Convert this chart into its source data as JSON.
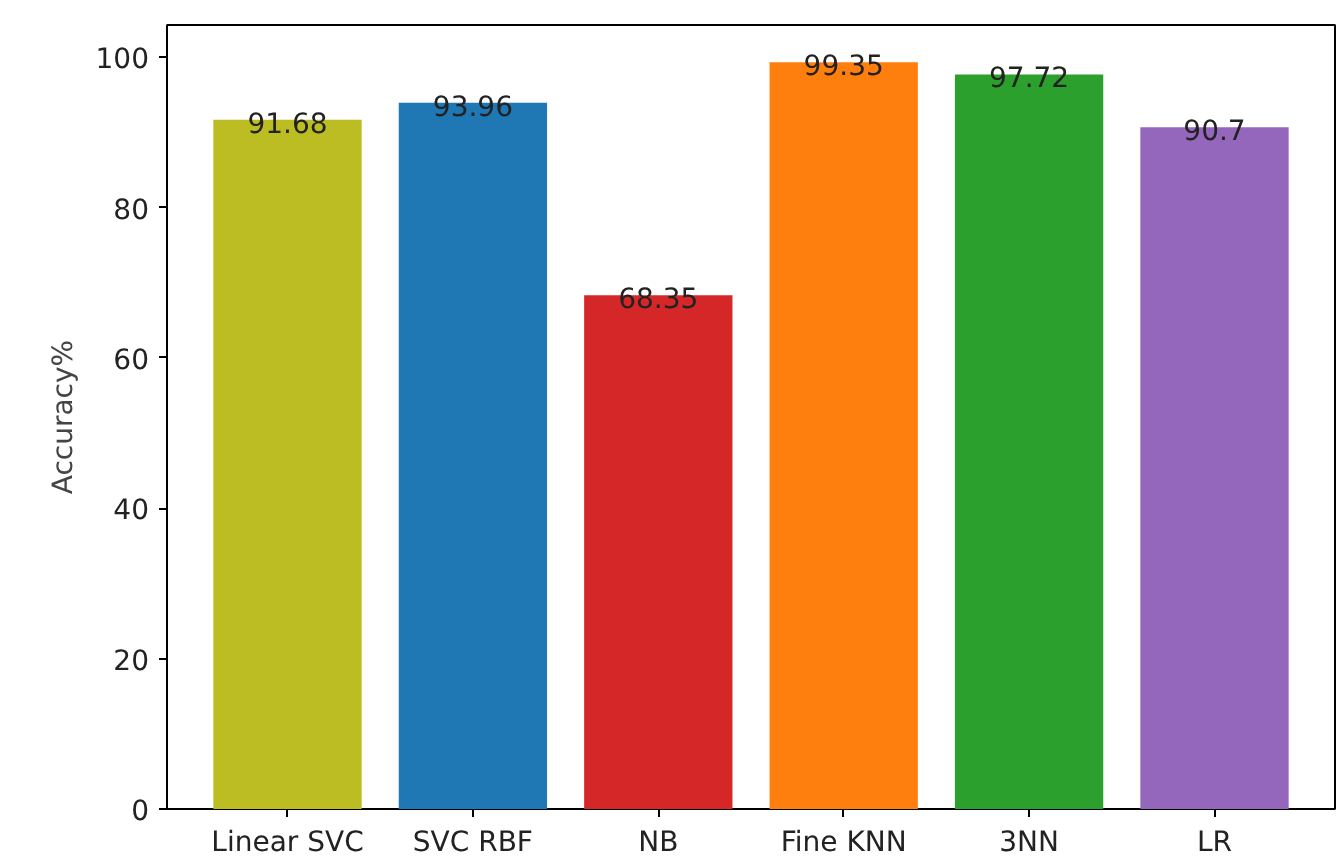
{
  "chart_data": {
    "type": "bar",
    "ylabel": "Accuracy%",
    "categories": [
      "Linear SVC",
      "SVC RBF",
      "NB",
      "Fine KNN",
      "3NN",
      "LR"
    ],
    "values": [
      91.68,
      93.96,
      68.35,
      99.35,
      97.72,
      90.7
    ],
    "colors": [
      "#bcbd22",
      "#1f77b4",
      "#d62728",
      "#ff7f0e",
      "#2ca02c",
      "#9467bd"
    ],
    "ylim": [
      0,
      104.3
    ],
    "yticks": [
      0,
      20,
      40,
      60,
      80,
      100
    ],
    "data_labels": true,
    "grid": false
  }
}
